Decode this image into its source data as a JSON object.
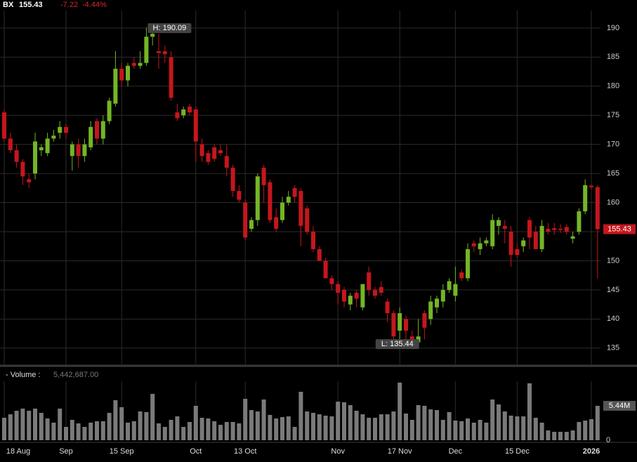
{
  "chart_data": {
    "type": "candlestick",
    "symbol": "BX",
    "last": "155.43",
    "change": "-7.22",
    "change_pct": "-4.44%",
    "high_label": "H: 190.09",
    "low_label": "L: 135.44",
    "price_marker": "155.43",
    "volume_title": "- Volume :",
    "volume_readout": "5,442,687.00",
    "volume_marker": "5.44M",
    "up_color": "#74b526",
    "down_color": "#c5161d",
    "volume_color": "#7a7a7a",
    "grid": true,
    "categories": [
      "18 Aug",
      null,
      null,
      null,
      null,
      null,
      null,
      null,
      null,
      null,
      "Sep",
      null,
      null,
      null,
      null,
      null,
      null,
      null,
      null,
      "15 Sep",
      null,
      null,
      null,
      null,
      null,
      null,
      null,
      null,
      null,
      null,
      null,
      "Oct",
      null,
      null,
      null,
      null,
      null,
      null,
      null,
      "13 Oct",
      null,
      null,
      null,
      null,
      null,
      null,
      null,
      null,
      null,
      null,
      null,
      null,
      null,
      null,
      "Nov",
      null,
      null,
      null,
      null,
      null,
      null,
      null,
      null,
      null,
      "17 Nov",
      null,
      null,
      null,
      null,
      null,
      null,
      null,
      null,
      "Dec",
      null,
      null,
      null,
      null,
      null,
      null,
      null,
      null,
      null,
      "15 Dec",
      null,
      null,
      null,
      null,
      null,
      null,
      null,
      null,
      null,
      null,
      null,
      "2026",
      null
    ],
    "open": [
      175.5,
      171,
      169,
      167,
      164,
      165,
      169,
      168.5,
      171,
      172,
      173,
      168,
      170,
      168,
      169.5,
      174,
      171,
      174,
      177,
      183,
      181,
      184,
      183.5,
      184,
      188.5,
      186,
      186,
      185,
      175.5,
      175,
      176.5,
      176,
      170,
      168.5,
      169.5,
      169,
      168,
      166,
      162,
      160,
      155.5,
      157,
      166,
      163.5,
      157.5,
      157,
      160,
      162.5,
      162,
      159,
      155,
      152,
      150,
      147,
      146,
      145,
      142.5,
      144.5,
      142,
      148,
      145,
      145.5,
      143,
      141,
      138,
      140,
      137,
      136,
      141,
      140,
      142,
      143,
      145,
      144,
      148,
      147,
      153,
      152,
      153,
      152.5,
      156,
      156,
      155,
      152,
      152.5,
      157,
      155,
      152,
      155.5,
      155.6,
      155.5,
      155.8,
      153.8,
      155,
      158.5,
      162.9,
      162.65
    ],
    "high": [
      176,
      172,
      170,
      167.5,
      165,
      172,
      170,
      172,
      172.5,
      174,
      173.5,
      170.5,
      171,
      171,
      174,
      174.5,
      175,
      178,
      186,
      184,
      184,
      185,
      186,
      190.09,
      190,
      189,
      187,
      186,
      177,
      176.5,
      177,
      176.5,
      171,
      169,
      170,
      170,
      170,
      166.5,
      163,
      160.5,
      157.5,
      165,
      166.5,
      164,
      159,
      161,
      162,
      163,
      162.5,
      159.5,
      156,
      152.5,
      150.5,
      147.5,
      146.5,
      145.5,
      144.5,
      145,
      146,
      149,
      145.5,
      146.5,
      143.5,
      141.5,
      142,
      140.5,
      138,
      140,
      141.5,
      144,
      144,
      146,
      147,
      149,
      148.5,
      153,
      153.5,
      154,
      154,
      158,
      157.5,
      157,
      156,
      153,
      154,
      157.5,
      156,
      157,
      156.5,
      156.5,
      156.3,
      156.3,
      155,
      159,
      164,
      163.2,
      163
    ],
    "low": [
      170.5,
      168.5,
      166,
      163,
      162.5,
      164,
      168,
      168,
      170.5,
      171,
      171,
      165.5,
      166,
      167,
      169,
      170,
      170,
      173.5,
      176.5,
      180,
      180,
      183,
      183,
      183.5,
      187,
      183,
      184,
      177.5,
      174,
      174.5,
      175,
      167,
      167,
      166.5,
      167,
      168,
      164.5,
      161,
      160,
      153.5,
      155,
      156,
      160,
      156.5,
      155,
      156.5,
      159.5,
      160,
      152.5,
      154.5,
      151.5,
      150,
      147,
      145,
      142.5,
      142,
      141.5,
      142,
      141.5,
      144,
      143.5,
      144,
      139.5,
      136,
      136.5,
      136,
      135.44,
      135.5,
      136.5,
      139,
      141,
      142,
      144.5,
      143,
      146.5,
      146.5,
      151.5,
      151,
      152.5,
      152,
      154.5,
      153,
      149,
      150.5,
      151.5,
      152,
      152,
      151.5,
      154.5,
      154.5,
      154.8,
      154.5,
      153,
      154.5,
      158,
      162.3,
      147
    ],
    "close": [
      171,
      169,
      167,
      164.5,
      163.5,
      170.5,
      169.5,
      171,
      171.5,
      173,
      172,
      170,
      168,
      170,
      173,
      171,
      174,
      177.5,
      183,
      181,
      183.5,
      183.5,
      184,
      188.5,
      189,
      185.7,
      185.5,
      178,
      174.5,
      176,
      175.5,
      170.5,
      168,
      167,
      167.5,
      168.5,
      166,
      162,
      160.5,
      154,
      157,
      164.5,
      163,
      157,
      155.5,
      160,
      161,
      161,
      156,
      155,
      152,
      150,
      147,
      146,
      144.5,
      143,
      144,
      143.5,
      146,
      145,
      144,
      144.5,
      141,
      137,
      141,
      138,
      136,
      137,
      138.5,
      143,
      143.5,
      145,
      146.5,
      146,
      147,
      152,
      152.5,
      153,
      153.5,
      157,
      157,
      155.5,
      151,
      151,
      153.5,
      154,
      152,
      156,
      155,
      155.3,
      155.3,
      155,
      154.2,
      158.5,
      163,
      162.65,
      155.43
    ],
    "volume": [
      3550000,
      4100000,
      4660000,
      5000000,
      4660000,
      5000000,
      4330000,
      3440000,
      2780000,
      5000000,
      2110000,
      3220000,
      2660000,
      2110000,
      2780000,
      3000000,
      3000000,
      4330000,
      6330000,
      5220000,
      2780000,
      3000000,
      4550000,
      4440000,
      7330000,
      2660000,
      2110000,
      3220000,
      3770000,
      2110000,
      2890000,
      5440000,
      3550000,
      3440000,
      3000000,
      2440000,
      2890000,
      2890000,
      2660000,
      6550000,
      4770000,
      4550000,
      6440000,
      4000000,
      3440000,
      3660000,
      3770000,
      2110000,
      7660000,
      4550000,
      4330000,
      4100000,
      3890000,
      3770000,
      6100000,
      6000000,
      5550000,
      4660000,
      4100000,
      3550000,
      3550000,
      4100000,
      4100000,
      4550000,
      9100000,
      4220000,
      3220000,
      5550000,
      5440000,
      4880000,
      4770000,
      3220000,
      4440000,
      3110000,
      3000000,
      3440000,
      2780000,
      3220000,
      2780000,
      6440000,
      5660000,
      4550000,
      3890000,
      3770000,
      3770000,
      9000000,
      3550000,
      2780000,
      1550000,
      1330000,
      1330000,
      1330000,
      1550000,
      2890000,
      3110000,
      3330000,
      5442687
    ],
    "ylim": [
      132.2,
      193
    ],
    "yticks": [
      135,
      140,
      145,
      150,
      155,
      160,
      165,
      170,
      175,
      180,
      185,
      190
    ],
    "vlim": [
      0,
      9324000
    ],
    "vticks": [
      0
    ]
  }
}
